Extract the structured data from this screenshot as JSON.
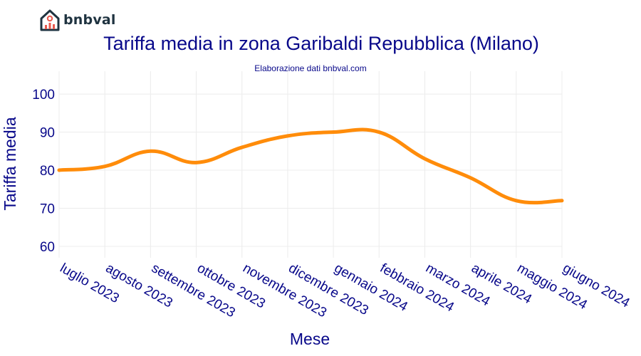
{
  "brand": {
    "name": "bnbval",
    "logo_icon": "house-chart-icon"
  },
  "colors": {
    "line": "#ff8c0a",
    "text": "#08088a",
    "grid": "#ececec"
  },
  "chart_data": {
    "type": "line",
    "title": "Tariffa media in zona Garibaldi Repubblica (Milano)",
    "subtitle": "Elaborazione dati bnbval.com",
    "xlabel": "Mese",
    "ylabel": "Tariffa media",
    "categories": [
      "luglio 2023",
      "agosto 2023",
      "settembre 2023",
      "ottobre 2023",
      "novembre 2023",
      "dicembre 2023",
      "gennaio 2024",
      "febbraio 2024",
      "marzo 2024",
      "aprile 2024",
      "maggio 2024",
      "giugno 2024"
    ],
    "series": [
      {
        "values": [
          80,
          81,
          85,
          82,
          86,
          89,
          90,
          90,
          83,
          78,
          72,
          72
        ]
      }
    ],
    "yticks": [
      60,
      70,
      80,
      90,
      100
    ],
    "ylim": [
      57,
      106
    ],
    "grid": true,
    "legend": "none"
  }
}
